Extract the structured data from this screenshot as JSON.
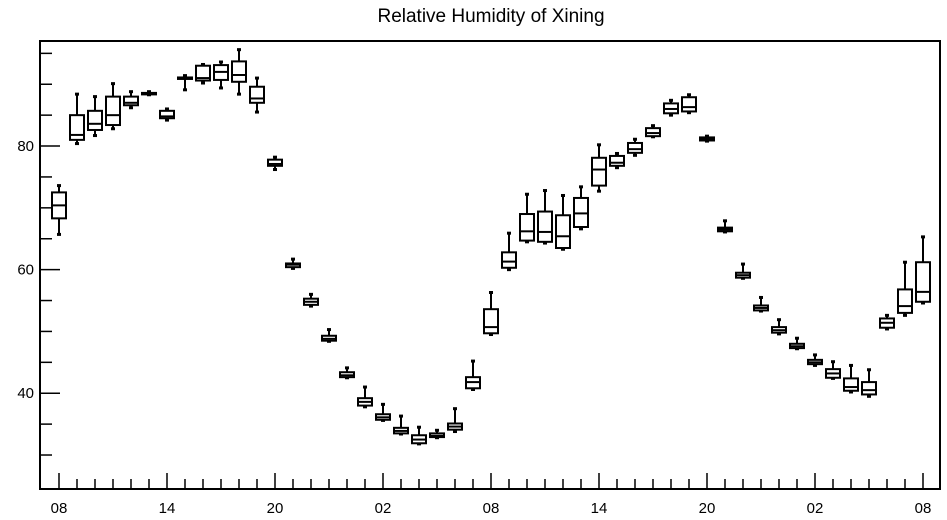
{
  "chart_data": {
    "type": "boxplot",
    "title": "Relative Humidity of Xining",
    "xlabel": "",
    "ylabel": "",
    "ylim": [
      24.5,
      97
    ],
    "y_ticks": [
      40,
      60,
      80
    ],
    "x_ticks": [
      {
        "index": 0,
        "label": "08"
      },
      {
        "index": 6,
        "label": "14"
      },
      {
        "index": 12,
        "label": "20"
      },
      {
        "index": 18,
        "label": "02"
      },
      {
        "index": 24,
        "label": "08"
      },
      {
        "index": 30,
        "label": "14"
      },
      {
        "index": 36,
        "label": "20"
      },
      {
        "index": 42,
        "label": "02"
      },
      {
        "index": 48,
        "label": "08"
      }
    ],
    "boxes": [
      {
        "x": 0,
        "min": 65.7,
        "q1": 68.3,
        "median": 70.4,
        "q3": 72.5,
        "max": 73.6
      },
      {
        "x": 1,
        "min": 80.4,
        "q1": 81.0,
        "median": 81.8,
        "q3": 85.0,
        "max": 88.4
      },
      {
        "x": 2,
        "min": 81.7,
        "q1": 82.6,
        "median": 83.6,
        "q3": 85.7,
        "max": 88.0
      },
      {
        "x": 3,
        "min": 82.8,
        "q1": 83.4,
        "median": 85.0,
        "q3": 88.0,
        "max": 90.1
      },
      {
        "x": 4,
        "min": 86.2,
        "q1": 86.6,
        "median": 87.0,
        "q3": 88.0,
        "max": 88.8
      },
      {
        "x": 5,
        "min": 88.3,
        "q1": 88.4,
        "median": 88.5,
        "q3": 88.6,
        "max": 88.8
      },
      {
        "x": 6,
        "min": 84.2,
        "q1": 84.5,
        "median": 84.8,
        "q3": 85.7,
        "max": 86.0
      },
      {
        "x": 7,
        "min": 89.1,
        "q1": 90.9,
        "median": 91.0,
        "q3": 91.1,
        "max": 91.4
      },
      {
        "x": 8,
        "min": 90.2,
        "q1": 90.6,
        "median": 91.0,
        "q3": 93.0,
        "max": 93.2
      },
      {
        "x": 9,
        "min": 89.4,
        "q1": 90.7,
        "median": 92.0,
        "q3": 93.1,
        "max": 93.6
      },
      {
        "x": 10,
        "min": 88.4,
        "q1": 90.4,
        "median": 91.5,
        "q3": 93.7,
        "max": 95.6
      },
      {
        "x": 11,
        "min": 85.5,
        "q1": 87.0,
        "median": 87.7,
        "q3": 89.6,
        "max": 91.0
      },
      {
        "x": 12,
        "min": 76.2,
        "q1": 76.8,
        "median": 77.1,
        "q3": 77.8,
        "max": 78.2
      },
      {
        "x": 13,
        "min": 60.2,
        "q1": 60.4,
        "median": 60.8,
        "q3": 61.0,
        "max": 61.7
      },
      {
        "x": 14,
        "min": 54.1,
        "q1": 54.3,
        "median": 54.8,
        "q3": 55.3,
        "max": 56.0
      },
      {
        "x": 15,
        "min": 48.4,
        "q1": 48.5,
        "median": 48.8,
        "q3": 49.3,
        "max": 50.3
      },
      {
        "x": 16,
        "min": 42.5,
        "q1": 42.6,
        "median": 42.9,
        "q3": 43.4,
        "max": 44.1
      },
      {
        "x": 17,
        "min": 37.8,
        "q1": 38.0,
        "median": 38.6,
        "q3": 39.2,
        "max": 41.0
      },
      {
        "x": 18,
        "min": 35.6,
        "q1": 35.7,
        "median": 36.1,
        "q3": 36.6,
        "max": 38.2
      },
      {
        "x": 19,
        "min": 33.4,
        "q1": 33.5,
        "median": 33.9,
        "q3": 34.4,
        "max": 36.3
      },
      {
        "x": 20,
        "min": 31.8,
        "q1": 31.9,
        "median": 32.5,
        "q3": 33.2,
        "max": 34.5
      },
      {
        "x": 21,
        "min": 32.8,
        "q1": 32.9,
        "median": 33.1,
        "q3": 33.5,
        "max": 34.0
      },
      {
        "x": 22,
        "min": 33.8,
        "q1": 34.1,
        "median": 34.6,
        "q3": 35.1,
        "max": 37.5
      },
      {
        "x": 23,
        "min": 40.6,
        "q1": 40.8,
        "median": 41.8,
        "q3": 42.6,
        "max": 45.2
      },
      {
        "x": 24,
        "min": 49.5,
        "q1": 49.7,
        "median": 50.7,
        "q3": 53.6,
        "max": 56.3
      },
      {
        "x": 25,
        "min": 60.0,
        "q1": 60.3,
        "median": 61.3,
        "q3": 62.8,
        "max": 65.9
      },
      {
        "x": 26,
        "min": 64.5,
        "q1": 64.7,
        "median": 66.2,
        "q3": 69.0,
        "max": 72.2
      },
      {
        "x": 27,
        "min": 64.3,
        "q1": 64.5,
        "median": 66.1,
        "q3": 69.4,
        "max": 72.8
      },
      {
        "x": 28,
        "min": 63.3,
        "q1": 63.5,
        "median": 65.4,
        "q3": 68.8,
        "max": 72.0
      },
      {
        "x": 29,
        "min": 66.6,
        "q1": 66.9,
        "median": 69.1,
        "q3": 71.6,
        "max": 73.4
      },
      {
        "x": 30,
        "min": 72.7,
        "q1": 73.6,
        "median": 76.2,
        "q3": 78.1,
        "max": 80.2
      },
      {
        "x": 31,
        "min": 76.5,
        "q1": 76.8,
        "median": 77.3,
        "q3": 78.4,
        "max": 78.8
      },
      {
        "x": 32,
        "min": 78.5,
        "q1": 78.9,
        "median": 79.5,
        "q3": 80.5,
        "max": 81.1
      },
      {
        "x": 33,
        "min": 81.5,
        "q1": 81.6,
        "median": 82.1,
        "q3": 82.9,
        "max": 83.3
      },
      {
        "x": 34,
        "min": 85.0,
        "q1": 85.3,
        "median": 86.0,
        "q3": 86.9,
        "max": 87.4
      },
      {
        "x": 35,
        "min": 85.4,
        "q1": 85.6,
        "median": 86.3,
        "q3": 87.9,
        "max": 88.3
      },
      {
        "x": 36,
        "min": 80.8,
        "q1": 80.9,
        "median": 81.2,
        "q3": 81.4,
        "max": 81.6
      },
      {
        "x": 37,
        "min": 66.1,
        "q1": 66.2,
        "median": 66.5,
        "q3": 66.8,
        "max": 67.9
      },
      {
        "x": 38,
        "min": 58.6,
        "q1": 58.7,
        "median": 59.1,
        "q3": 59.5,
        "max": 60.9
      },
      {
        "x": 39,
        "min": 53.3,
        "q1": 53.4,
        "median": 53.8,
        "q3": 54.2,
        "max": 55.5
      },
      {
        "x": 40,
        "min": 49.6,
        "q1": 49.8,
        "median": 50.2,
        "q3": 50.7,
        "max": 51.9
      },
      {
        "x": 41,
        "min": 47.2,
        "q1": 47.3,
        "median": 47.6,
        "q3": 48.0,
        "max": 48.9
      },
      {
        "x": 42,
        "min": 44.5,
        "q1": 44.7,
        "median": 45.0,
        "q3": 45.4,
        "max": 46.2
      },
      {
        "x": 43,
        "min": 42.4,
        "q1": 42.5,
        "median": 43.2,
        "q3": 43.9,
        "max": 45.1
      },
      {
        "x": 44,
        "min": 40.2,
        "q1": 40.4,
        "median": 41.0,
        "q3": 42.4,
        "max": 44.5
      },
      {
        "x": 45,
        "min": 39.5,
        "q1": 39.8,
        "median": 40.5,
        "q3": 41.8,
        "max": 43.8
      },
      {
        "x": 46,
        "min": 50.4,
        "q1": 50.6,
        "median": 51.4,
        "q3": 52.1,
        "max": 52.6
      },
      {
        "x": 47,
        "min": 52.6,
        "q1": 53.0,
        "median": 54.1,
        "q3": 56.8,
        "max": 61.2
      },
      {
        "x": 48,
        "min": 54.6,
        "q1": 54.8,
        "median": 56.4,
        "q3": 61.2,
        "max": 65.3
      }
    ]
  }
}
